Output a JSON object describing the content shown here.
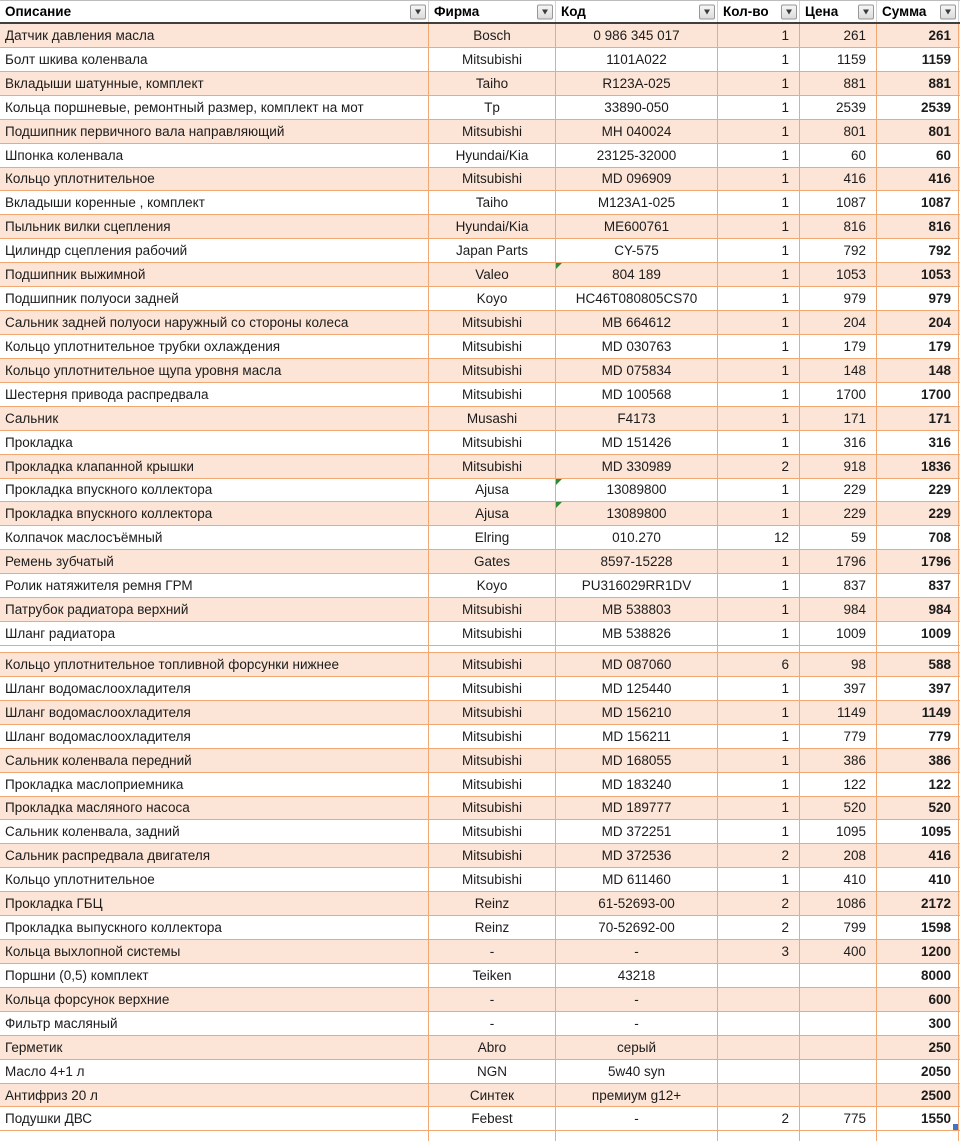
{
  "table": {
    "columns": [
      {
        "key": "description",
        "label": "Описание"
      },
      {
        "key": "brand",
        "label": "Фирма"
      },
      {
        "key": "code",
        "label": "Код"
      },
      {
        "key": "qty",
        "label": "Кол-во"
      },
      {
        "key": "price",
        "label": "Цена"
      },
      {
        "key": "total",
        "label": "Сумма"
      }
    ],
    "colors": {
      "row_peach": "#fce4d6",
      "row_white": "#ffffff",
      "grid_border": "#f2a873",
      "header_bottom_border": "#3f3f3f",
      "comment_flag_green": "#2e8b33",
      "selection_marker_blue": "#4472c4"
    },
    "rows": [
      {
        "shade": "peach",
        "description": "Датчик давления масла",
        "brand": "Bosch",
        "code": "0 986 345 017",
        "qty": "1",
        "price": "261",
        "total": "261"
      },
      {
        "shade": "white",
        "description": "Болт шкива коленвала",
        "brand": "Mitsubishi",
        "code": "1101A022",
        "qty": "1",
        "price": "1159",
        "total": "1159"
      },
      {
        "shade": "peach",
        "description": "Вкладыши шатунные, комплект",
        "brand": "Taiho",
        "code": "R123A-025",
        "qty": "1",
        "price": "881",
        "total": "881"
      },
      {
        "shade": "white",
        "description": "Кольца поршневые, ремонтный размер, комплект на мот",
        "brand": "Tp",
        "code": "33890-050",
        "qty": "1",
        "price": "2539",
        "total": "2539"
      },
      {
        "shade": "peach",
        "description": "Подшипник первичного вала направляющий",
        "brand": "Mitsubishi",
        "code": "MH 040024",
        "qty": "1",
        "price": "801",
        "total": "801"
      },
      {
        "shade": "white",
        "description": "Шпонка коленвала",
        "brand": "Hyundai/Kia",
        "code": "23125-32000",
        "qty": "1",
        "price": "60",
        "total": "60"
      },
      {
        "shade": "peach",
        "description": "Кольцо уплотнительное",
        "brand": "Mitsubishi",
        "code": "MD 096909",
        "qty": "1",
        "price": "416",
        "total": "416"
      },
      {
        "shade": "white",
        "description": "Вкладыши коренные , комплект",
        "brand": "Taiho",
        "code": "M123A1-025",
        "qty": "1",
        "price": "1087",
        "total": "1087"
      },
      {
        "shade": "peach",
        "description": "Пыльник вилки сцепления",
        "brand": "Hyundai/Kia",
        "code": "ME600761",
        "qty": "1",
        "price": "816",
        "total": "816"
      },
      {
        "shade": "white",
        "description": "Цилиндр сцепления рабочий",
        "brand": "Japan Parts",
        "code": "CY-575",
        "qty": "1",
        "price": "792",
        "total": "792"
      },
      {
        "shade": "peach",
        "description": "Подшипник выжимной",
        "brand": "Valeo",
        "code": "804 189",
        "qty": "1",
        "price": "1053",
        "total": "1053",
        "code_flag": true
      },
      {
        "shade": "white",
        "description": "Подшипник полуоси задней",
        "brand": "Koyo",
        "code": "HC46T080805CS70",
        "qty": "1",
        "price": "979",
        "total": "979"
      },
      {
        "shade": "peach",
        "description": "Сальник задней полуоси наружный со стороны колеса",
        "brand": "Mitsubishi",
        "code": "MB 664612",
        "qty": "1",
        "price": "204",
        "total": "204"
      },
      {
        "shade": "white",
        "description": "Кольцо уплотнительное трубки охлаждения",
        "brand": "Mitsubishi",
        "code": "MD 030763",
        "qty": "1",
        "price": "179",
        "total": "179"
      },
      {
        "shade": "peach",
        "description": "Кольцо уплотнительное щупа уровня масла",
        "brand": "Mitsubishi",
        "code": "MD 075834",
        "qty": "1",
        "price": "148",
        "total": "148"
      },
      {
        "shade": "white",
        "description": "Шестерня привода распредвала",
        "brand": "Mitsubishi",
        "code": "MD 100568",
        "qty": "1",
        "price": "1700",
        "total": "1700"
      },
      {
        "shade": "peach",
        "description": "Сальник",
        "brand": "Musashi",
        "code": "F4173",
        "qty": "1",
        "price": "171",
        "total": "171"
      },
      {
        "shade": "white",
        "description": "Прокладка",
        "brand": "Mitsubishi",
        "code": "MD 151426",
        "qty": "1",
        "price": "316",
        "total": "316"
      },
      {
        "shade": "peach",
        "description": "Прокладка клапанной крышки",
        "brand": "Mitsubishi",
        "code": "MD 330989",
        "qty": "2",
        "price": "918",
        "total": "1836"
      },
      {
        "shade": "white",
        "description": "Прокладка впускного коллектора",
        "brand": "Ajusa",
        "code": "13089800",
        "qty": "1",
        "price": "229",
        "total": "229",
        "code_flag": true
      },
      {
        "shade": "peach",
        "description": "Прокладка впускного коллектора",
        "brand": "Ajusa",
        "code": "13089800",
        "qty": "1",
        "price": "229",
        "total": "229",
        "code_flag": true
      },
      {
        "shade": "white",
        "description": "Колпачок маслосъёмный",
        "brand": "Elring",
        "code": "010.270",
        "qty": "12",
        "price": "59",
        "total": "708"
      },
      {
        "shade": "peach",
        "description": "Ремень зубчатый",
        "brand": "Gates",
        "code": "8597-15228",
        "qty": "1",
        "price": "1796",
        "total": "1796"
      },
      {
        "shade": "white",
        "description": "Ролик натяжителя ремня ГРМ",
        "brand": "Koyo",
        "code": "PU316029RR1DV",
        "qty": "1",
        "price": "837",
        "total": "837"
      },
      {
        "shade": "peach",
        "description": "Патрубок радиатора верхний",
        "brand": "Mitsubishi",
        "code": "MB 538803",
        "qty": "1",
        "price": "984",
        "total": "984"
      },
      {
        "shade": "white",
        "description": "Шланг радиатора",
        "brand": "Mitsubishi",
        "code": "MB 538826",
        "qty": "1",
        "price": "1009",
        "total": "1009"
      },
      {
        "type": "collapsed"
      },
      {
        "shade": "peach",
        "description": "Кольцо уплотнительное топливной форсунки нижнее",
        "brand": "Mitsubishi",
        "code": "MD 087060",
        "qty": "6",
        "price": "98",
        "total": "588"
      },
      {
        "shade": "white",
        "description": "Шланг водомаслоохладителя",
        "brand": "Mitsubishi",
        "code": "MD 125440",
        "qty": "1",
        "price": "397",
        "total": "397"
      },
      {
        "shade": "peach",
        "description": "Шланг водомаслоохладителя",
        "brand": "Mitsubishi",
        "code": "MD 156210",
        "qty": "1",
        "price": "1149",
        "total": "1149"
      },
      {
        "shade": "white",
        "description": "Шланг водомаслоохладителя",
        "brand": "Mitsubishi",
        "code": "MD 156211",
        "qty": "1",
        "price": "779",
        "total": "779"
      },
      {
        "shade": "peach",
        "description": "Сальник коленвала передний",
        "brand": "Mitsubishi",
        "code": "MD 168055",
        "qty": "1",
        "price": "386",
        "total": "386"
      },
      {
        "shade": "white",
        "description": "Прокладка маслоприемника",
        "brand": "Mitsubishi",
        "code": "MD 183240",
        "qty": "1",
        "price": "122",
        "total": "122"
      },
      {
        "shade": "peach",
        "description": "Прокладка масляного насоса",
        "brand": "Mitsubishi",
        "code": "MD 189777",
        "qty": "1",
        "price": "520",
        "total": "520"
      },
      {
        "shade": "white",
        "description": "Сальник коленвала, задний",
        "brand": "Mitsubishi",
        "code": "MD 372251",
        "qty": "1",
        "price": "1095",
        "total": "1095"
      },
      {
        "shade": "peach",
        "description": "Сальник распредвала двигателя",
        "brand": "Mitsubishi",
        "code": "MD 372536",
        "qty": "2",
        "price": "208",
        "total": "416"
      },
      {
        "shade": "white",
        "description": "Кольцо уплотнительное",
        "brand": "Mitsubishi",
        "code": "MD 611460",
        "qty": "1",
        "price": "410",
        "total": "410"
      },
      {
        "shade": "peach",
        "description": "Прокладка ГБЦ",
        "brand": "Reinz",
        "code": "61-52693-00",
        "qty": "2",
        "price": "1086",
        "total": "2172"
      },
      {
        "shade": "white",
        "description": "Прокладка выпускного коллектора",
        "brand": "Reinz",
        "code": "70-52692-00",
        "qty": "2",
        "price": "799",
        "total": "1598"
      },
      {
        "shade": "peach",
        "description": "Кольца выхлопной системы",
        "brand": "-",
        "code": "-",
        "qty": "3",
        "price": "400",
        "total": "1200"
      },
      {
        "shade": "white",
        "description": "Поршни (0,5) комплект",
        "brand": "Teiken",
        "code": "43218",
        "qty": "",
        "price": "",
        "total": "8000"
      },
      {
        "shade": "peach",
        "description": "Кольца форсунок верхние",
        "brand": "-",
        "code": "-",
        "qty": "",
        "price": "",
        "total": "600"
      },
      {
        "shade": "white",
        "description": "Фильтр  масляный",
        "brand": "-",
        "code": "-",
        "qty": "",
        "price": "",
        "total": "300"
      },
      {
        "shade": "peach",
        "description": "Герметик",
        "brand": "Abro",
        "code": "серый",
        "qty": "",
        "price": "",
        "total": "250"
      },
      {
        "shade": "white",
        "description": "Масло  4+1 л",
        "brand": "NGN",
        "code": "5w40 syn",
        "qty": "",
        "price": "",
        "total": "2050"
      },
      {
        "shade": "peach",
        "description": "Антифриз 20 л",
        "brand": "Синтек",
        "code": "премиум g12+",
        "qty": "",
        "price": "",
        "total": "2500"
      },
      {
        "shade": "white",
        "description": "Подушки ДВС",
        "brand": "Febest",
        "code": "-",
        "qty": "2",
        "price": "775",
        "total": "1550",
        "selection_marker": true
      },
      {
        "type": "partial"
      }
    ]
  }
}
